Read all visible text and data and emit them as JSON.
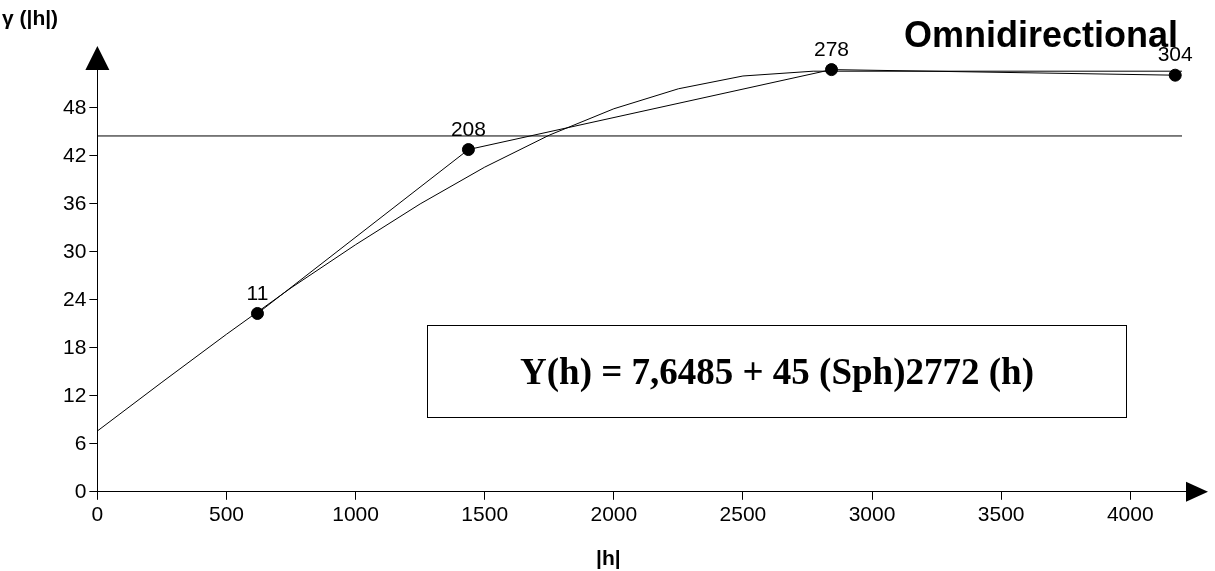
{
  "chart_data": {
    "type": "line",
    "title": "Omnidirectional",
    "xlabel": "|h|",
    "ylabel": "γ (|h|)",
    "annotations": [
      "Y(h) = 7,6485 + 45 (Sph)2772 (h)",
      {
        "text": "11",
        "x": 620,
        "y": 22.3
      },
      {
        "text": "208",
        "x": 1437,
        "y": 42.8
      },
      {
        "text": "278",
        "x": 2843,
        "y": 52.8
      },
      {
        "text": "304",
        "x": 4174,
        "y": 52.1
      }
    ],
    "xlim": [
      0,
      4270
    ],
    "ylim": [
      0,
      54
    ],
    "xticks": [
      0,
      500,
      1000,
      1500,
      2000,
      2500,
      3000,
      3500,
      4000
    ],
    "yticks": [
      0,
      6,
      12,
      18,
      24,
      30,
      36,
      42,
      48
    ],
    "grid": false,
    "legend": false,
    "ref_lines": [
      {
        "axis": "y",
        "value": 44.5,
        "color": "#000000"
      }
    ],
    "series": [
      {
        "color": "#000000",
        "marker": "circle",
        "x": [
          620,
          1437,
          2843,
          4174
        ],
        "values": [
          22.3,
          42.8,
          52.8,
          52.1
        ]
      },
      {
        "color": "#000000",
        "marker": "none",
        "x": [
          0,
          250,
          500,
          750,
          1000,
          1250,
          1500,
          1750,
          2000,
          2250,
          2500,
          2772,
          4200
        ],
        "values": [
          7.6,
          13.7,
          19.7,
          25.5,
          30.9,
          36.0,
          40.6,
          44.6,
          47.9,
          50.4,
          52.0,
          52.6,
          52.6
        ]
      }
    ]
  }
}
